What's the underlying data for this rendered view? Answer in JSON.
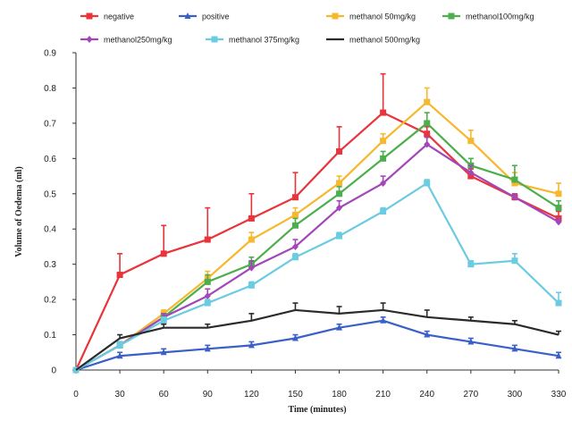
{
  "chart_data": {
    "type": "line",
    "xlabel": "Time (minutes)",
    "ylabel": "Volume of Oedema (ml)",
    "x": [
      0,
      30,
      60,
      90,
      120,
      150,
      180,
      210,
      240,
      270,
      300,
      330
    ],
    "xlim": [
      0,
      330
    ],
    "ylim": [
      0,
      0.9
    ],
    "yticks": [
      "0",
      "0.1",
      "0.2",
      "0.3",
      "0.4",
      "0.5",
      "0.6",
      "0.7",
      "0.8",
      "0.9"
    ],
    "grid": false,
    "legend_position": "top",
    "series": [
      {
        "name": "negative",
        "color": "#e8343a",
        "marker": "square",
        "values": [
          0,
          0.27,
          0.33,
          0.37,
          0.43,
          0.49,
          0.62,
          0.73,
          0.67,
          0.55,
          0.49,
          0.43
        ],
        "errors": [
          0,
          0.06,
          0.08,
          0.09,
          0.07,
          0.07,
          0.07,
          0.11,
          0.02,
          0.02,
          0.01,
          0.02
        ]
      },
      {
        "name": "positive",
        "color": "#3a5fc8",
        "marker": "triangle",
        "values": [
          0,
          0.04,
          0.05,
          0.06,
          0.07,
          0.09,
          0.12,
          0.14,
          0.1,
          0.08,
          0.06,
          0.04
        ],
        "errors": [
          0,
          0.01,
          0.01,
          0.01,
          0.01,
          0.01,
          0.01,
          0.01,
          0.01,
          0.01,
          0.01,
          0.01
        ]
      },
      {
        "name": "methanol 50mg/kg",
        "color": "#f5b82e",
        "marker": "square",
        "values": [
          0,
          0.07,
          0.16,
          0.26,
          0.37,
          0.44,
          0.53,
          0.65,
          0.76,
          0.65,
          0.53,
          0.5
        ],
        "errors": [
          0,
          0.01,
          0.01,
          0.02,
          0.02,
          0.02,
          0.02,
          0.02,
          0.04,
          0.03,
          0.03,
          0.03
        ]
      },
      {
        "name": "methanol100mg/kg",
        "color": "#4cae4c",
        "marker": "square",
        "values": [
          0,
          0.07,
          0.15,
          0.25,
          0.3,
          0.41,
          0.5,
          0.6,
          0.7,
          0.58,
          0.54,
          0.46
        ],
        "errors": [
          0,
          0.01,
          0.01,
          0.02,
          0.02,
          0.02,
          0.02,
          0.02,
          0.03,
          0.02,
          0.04,
          0.02
        ]
      },
      {
        "name": "methanol250mg/kg",
        "color": "#a347b8",
        "marker": "diamond",
        "values": [
          0,
          0.07,
          0.15,
          0.21,
          0.29,
          0.35,
          0.46,
          0.53,
          0.64,
          0.56,
          0.49,
          0.42
        ],
        "errors": [
          0,
          0.01,
          0.01,
          0.02,
          0.02,
          0.02,
          0.02,
          0.02,
          0.02,
          0.02,
          0.01,
          0.01
        ]
      },
      {
        "name": "methanol 375mg/kg",
        "color": "#6bcbe0",
        "marker": "square",
        "values": [
          0,
          0.07,
          0.14,
          0.19,
          0.24,
          0.32,
          0.38,
          0.45,
          0.53,
          0.3,
          0.31,
          0.19
        ],
        "errors": [
          0,
          0.01,
          0.01,
          0.01,
          0.01,
          0.01,
          0.01,
          0.01,
          0.01,
          0.01,
          0.02,
          0.03
        ]
      },
      {
        "name": "methanol 500mg/kg",
        "color": "#2b2b2b",
        "marker": "none",
        "values": [
          0,
          0.09,
          0.12,
          0.12,
          0.14,
          0.17,
          0.16,
          0.17,
          0.15,
          0.14,
          0.13,
          0.1
        ],
        "errors": [
          0,
          0.01,
          0.01,
          0.01,
          0.02,
          0.02,
          0.02,
          0.02,
          0.02,
          0.01,
          0.01,
          0.01
        ]
      }
    ]
  }
}
